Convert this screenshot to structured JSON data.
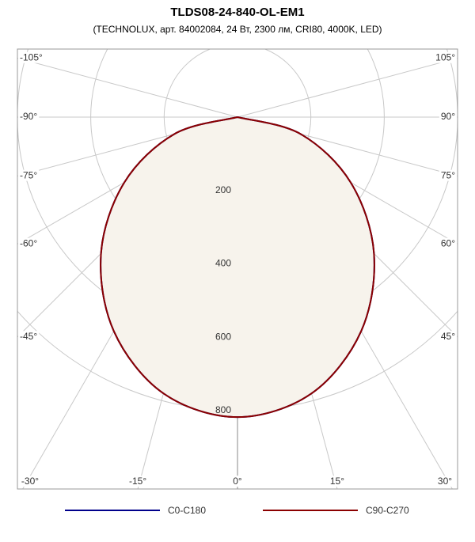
{
  "chart_data": {
    "type": "polar",
    "title": "TLDS08-24-840-OL-EM1",
    "subtitle": "(TECHNOLUX, арт. 84002084, 24 Вт, 2300 лм, CRI80, 4000K, LED)",
    "angles": [
      -90,
      -75,
      -60,
      -45,
      -30,
      -15,
      0,
      15,
      30,
      45,
      60,
      75,
      90
    ],
    "series": [
      {
        "name": "C0-C180",
        "color": "#00008b",
        "values": [
          0,
          178,
          356,
          526,
          674,
          780,
          818,
          780,
          674,
          526,
          356,
          178,
          0
        ]
      },
      {
        "name": "C90-C270",
        "color": "#8b0000",
        "values": [
          0,
          178,
          356,
          526,
          674,
          780,
          818,
          780,
          674,
          526,
          356,
          178,
          0
        ]
      }
    ],
    "rlim": [
      0,
      1000
    ],
    "rticks": [
      200,
      400,
      600,
      800
    ],
    "angle_ticks": [
      {
        "value": -105,
        "label": "-105°"
      },
      {
        "value": -90,
        "label": "-90°"
      },
      {
        "value": -75,
        "label": "-75°"
      },
      {
        "value": -60,
        "label": "-60°"
      },
      {
        "value": -45,
        "label": "-45°"
      },
      {
        "value": -30,
        "label": "-30°"
      },
      {
        "value": -15,
        "label": "-15°"
      },
      {
        "value": 0,
        "label": "0°"
      },
      {
        "value": 15,
        "label": "15°"
      },
      {
        "value": 30,
        "label": "30°"
      },
      {
        "value": 45,
        "label": "45°"
      },
      {
        "value": 60,
        "label": "60°"
      },
      {
        "value": 75,
        "label": "75°"
      },
      {
        "value": 90,
        "label": "90°"
      },
      {
        "value": 105,
        "label": "105°"
      }
    ],
    "fill_color": "#f7f3ec"
  }
}
